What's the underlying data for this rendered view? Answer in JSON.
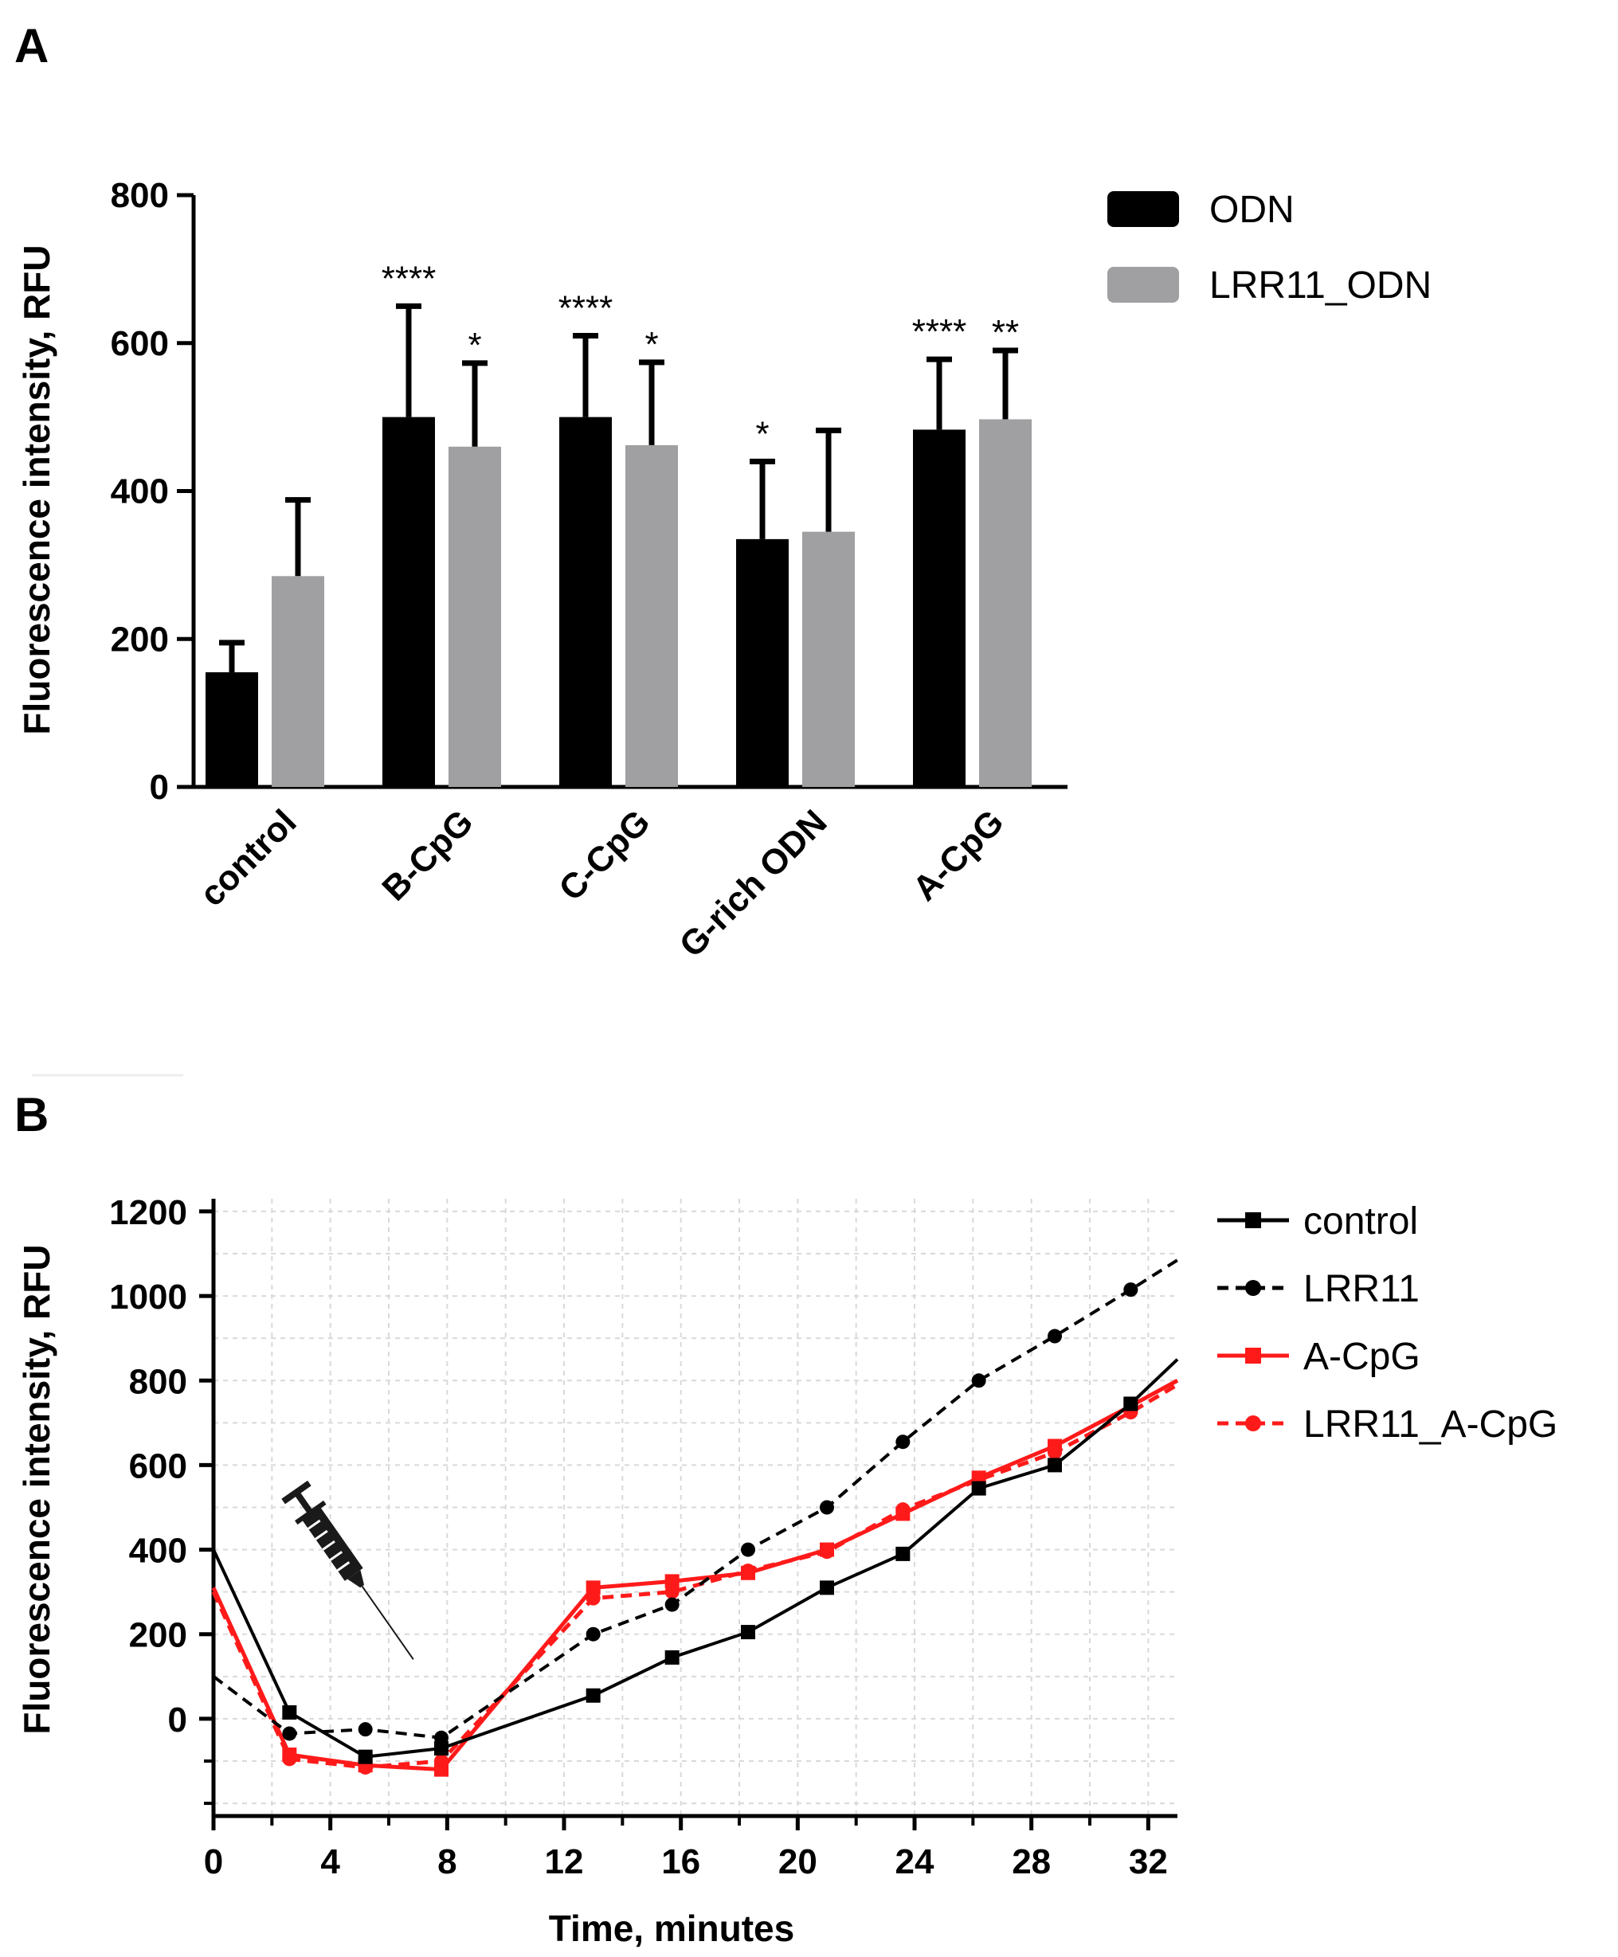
{
  "chart_data": [
    {
      "type": "bar",
      "panel_label": "A",
      "ylabel": "Fluorescence intensity, RFU",
      "xlabel": "",
      "ylim": [
        0,
        800
      ],
      "yticks": [
        "0",
        "200",
        "400",
        "600",
        "800"
      ],
      "categories": [
        "control",
        "B-CpG",
        "C-CpG",
        "G-rich ODN",
        "A-CpG"
      ],
      "series": [
        {
          "name": "ODN",
          "color": "#000000",
          "values": [
            155,
            500,
            500,
            335,
            483
          ],
          "errors": [
            40,
            150,
            110,
            105,
            95
          ],
          "stars": [
            "",
            "****",
            "****",
            "*",
            "****"
          ]
        },
        {
          "name": "LRR11_ODN",
          "color": "#a0a0a2",
          "values": [
            285,
            460,
            462,
            345,
            497
          ],
          "errors": [
            103,
            113,
            112,
            137,
            93
          ],
          "stars": [
            "",
            "*",
            "*",
            "",
            "**"
          ]
        }
      ],
      "legend": "top-right"
    },
    {
      "type": "line",
      "panel_label": "B",
      "ylabel": "Fluorescence intensity, RFU",
      "xlabel": "Time, minutes",
      "xlim": [
        0,
        33
      ],
      "ylim": [
        -230,
        1230
      ],
      "xticks": [
        "0",
        "4",
        "8",
        "12",
        "16",
        "20",
        "24",
        "28",
        "32"
      ],
      "yticks": [
        "0",
        "200",
        "400",
        "600",
        "800",
        "1000",
        "1200"
      ],
      "annotation": "syringe-icon",
      "series": [
        {
          "name": "control",
          "color": "#000000",
          "dash": "solid",
          "marker": "square",
          "x": [
            0,
            2.6,
            5.2,
            7.8,
            13,
            15.7,
            18.3,
            21,
            23.6,
            26.2,
            28.8,
            31.4,
            33
          ],
          "y": [
            400,
            15,
            -90,
            -70,
            55,
            145,
            205,
            310,
            390,
            545,
            600,
            745,
            850
          ]
        },
        {
          "name": "LRR11",
          "color": "#000000",
          "dash": "dashed",
          "marker": "circle",
          "x": [
            0,
            2.6,
            5.2,
            7.8,
            13,
            15.7,
            18.3,
            21,
            23.6,
            26.2,
            28.8,
            31.4,
            33
          ],
          "y": [
            100,
            -35,
            -25,
            -45,
            200,
            270,
            400,
            500,
            655,
            800,
            905,
            1015,
            1085
          ]
        },
        {
          "name": "A-CpG",
          "color": "#ff1a1a",
          "dash": "solid",
          "marker": "square",
          "x": [
            0,
            2.6,
            5.2,
            7.8,
            13,
            15.7,
            18.3,
            21,
            23.6,
            26.2,
            28.8,
            31.4,
            33
          ],
          "y": [
            310,
            -85,
            -110,
            -120,
            310,
            325,
            345,
            400,
            485,
            570,
            645,
            740,
            800
          ]
        },
        {
          "name": "LRR11_A-CpG",
          "color": "#ff1a1a",
          "dash": "dashed",
          "marker": "circle",
          "x": [
            0,
            2.6,
            5.2,
            7.8,
            13,
            15.7,
            18.3,
            21,
            23.6,
            26.2,
            28.8,
            31.4,
            33
          ],
          "y": [
            300,
            -95,
            -115,
            -100,
            285,
            300,
            350,
            395,
            495,
            565,
            630,
            725,
            790
          ]
        }
      ],
      "legend": "top-right"
    }
  ]
}
